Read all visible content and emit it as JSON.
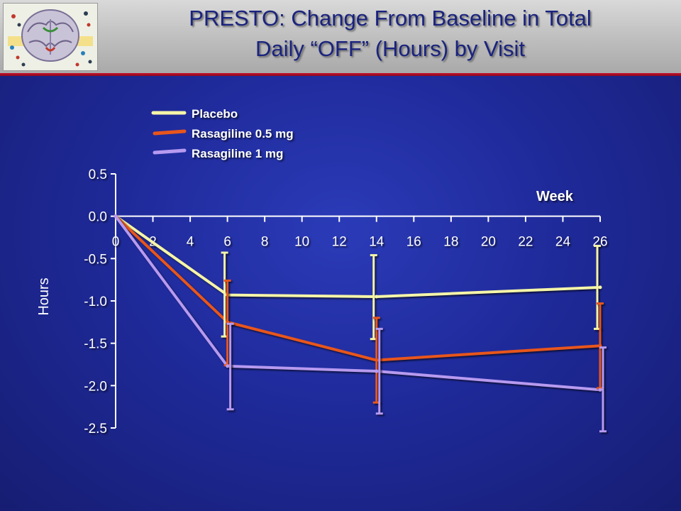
{
  "header": {
    "title_line1": "PRESTO: Change From Baseline in Total",
    "title_line2": "Daily “OFF” (Hours) by Visit"
  },
  "colors": {
    "background": "#1f2a9a",
    "axis": "#ffffff",
    "placebo": "#f5f5a8",
    "rasagiline_05": "#e8561c",
    "rasagiline_1": "#b79af0"
  },
  "chart_data": {
    "type": "line",
    "xlabel": "Week",
    "ylabel": "Hours",
    "xlim": [
      0,
      26
    ],
    "ylim": [
      -2.5,
      0.5
    ],
    "x_ticks": [
      0,
      2,
      4,
      6,
      8,
      10,
      12,
      14,
      16,
      18,
      20,
      22,
      24,
      26
    ],
    "y_ticks": [
      0.5,
      0.0,
      -0.5,
      -1.0,
      -1.5,
      -2.0,
      -2.5
    ],
    "y_tick_labels": [
      "0.5",
      "0.0",
      "-0.5",
      "-1.0",
      "-1.5",
      "-2.0",
      "-2.5"
    ],
    "legend_position": "top-left",
    "series": [
      {
        "name": "Placebo",
        "color": "#f5f5a8",
        "x": [
          0,
          6,
          14,
          26
        ],
        "y": [
          0,
          -0.93,
          -0.95,
          -0.84
        ],
        "error_low": [
          null,
          -1.42,
          -1.45,
          -1.33
        ],
        "error_high": [
          null,
          -0.43,
          -0.46,
          -0.35
        ]
      },
      {
        "name": "Rasagiline 0.5 mg",
        "color": "#e8561c",
        "x": [
          0,
          6,
          14,
          26
        ],
        "y": [
          0,
          -1.25,
          -1.7,
          -1.53
        ],
        "error_low": [
          null,
          -1.76,
          -2.2,
          -2.03
        ],
        "error_high": [
          null,
          -0.76,
          -1.2,
          -1.03
        ]
      },
      {
        "name": "Rasagiline 1 mg",
        "color": "#b79af0",
        "x": [
          0,
          6,
          14,
          26
        ],
        "y": [
          0,
          -1.77,
          -1.83,
          -2.05
        ],
        "error_low": [
          null,
          -2.28,
          -2.33,
          -2.54
        ],
        "error_high": [
          null,
          -1.27,
          -1.33,
          -1.55
        ]
      }
    ]
  }
}
